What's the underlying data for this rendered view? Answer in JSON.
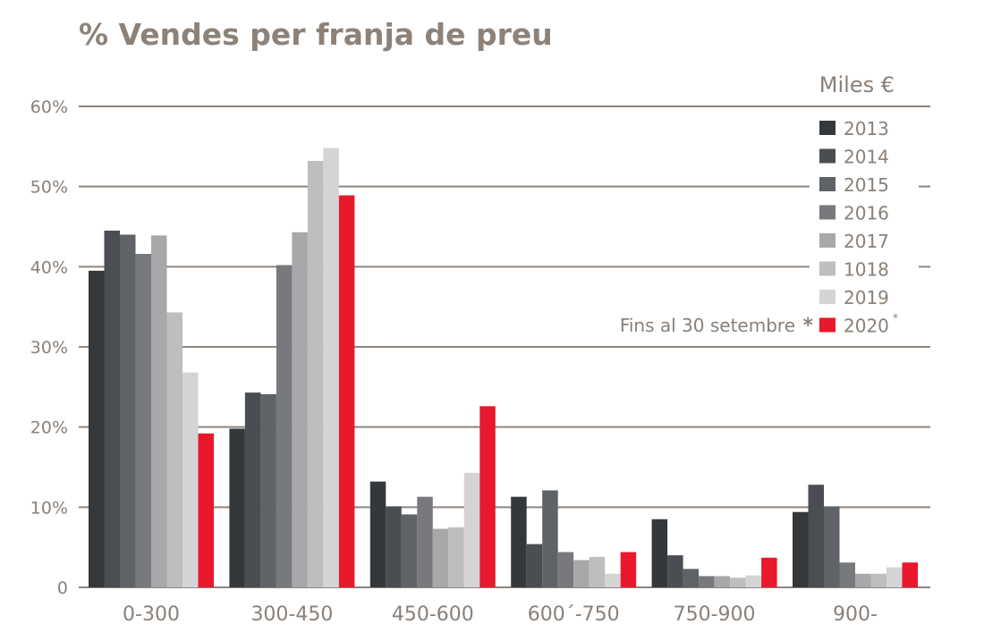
{
  "chart_data": {
    "type": "bar",
    "title": "% Vendes per franja de preu",
    "unit_label": "Miles €",
    "xlabel": "",
    "ylabel": "",
    "ylim": [
      0,
      60
    ],
    "yticks": [
      0,
      10,
      20,
      30,
      40,
      50,
      60
    ],
    "ytick_labels": [
      "0",
      "10%",
      "20%",
      "30%",
      "40%",
      "50%",
      "60%"
    ],
    "grid": true,
    "legend_position": "top-right",
    "categories": [
      "0-300",
      "300-450",
      "450-600",
      "600´-750",
      "750-900",
      "900-"
    ],
    "series": [
      {
        "name": "2013",
        "color": "#35383b",
        "values": [
          39.5,
          19.8,
          13.2,
          11.3,
          8.5,
          9.4
        ]
      },
      {
        "name": "2014",
        "color": "#4a4d51",
        "values": [
          44.5,
          24.3,
          10.1,
          5.4,
          4.0,
          12.8
        ]
      },
      {
        "name": "2015",
        "color": "#5f6266",
        "values": [
          44.0,
          24.1,
          9.1,
          12.1,
          2.3,
          10.1
        ]
      },
      {
        "name": "2016",
        "color": "#78797c",
        "values": [
          41.6,
          40.2,
          11.3,
          4.4,
          1.4,
          3.1
        ]
      },
      {
        "name": "2017",
        "color": "#a7a8aa",
        "values": [
          43.9,
          44.3,
          7.3,
          3.4,
          1.4,
          1.7
        ]
      },
      {
        "name": "1018",
        "color": "#bdbec0",
        "values": [
          34.3,
          53.2,
          7.5,
          3.8,
          1.2,
          1.7
        ]
      },
      {
        "name": "2019",
        "color": "#d4d4d5",
        "values": [
          26.8,
          54.8,
          14.3,
          1.7,
          1.5,
          2.5
        ]
      },
      {
        "name": "2020",
        "color": "#e8192c",
        "values": [
          19.2,
          48.9,
          22.6,
          4.4,
          3.7,
          3.1
        ]
      }
    ],
    "annotation": "Fins al 30 setembre",
    "annotation_marker": "*",
    "asterisk_series": "2020",
    "asterisk_symbol": "*"
  }
}
